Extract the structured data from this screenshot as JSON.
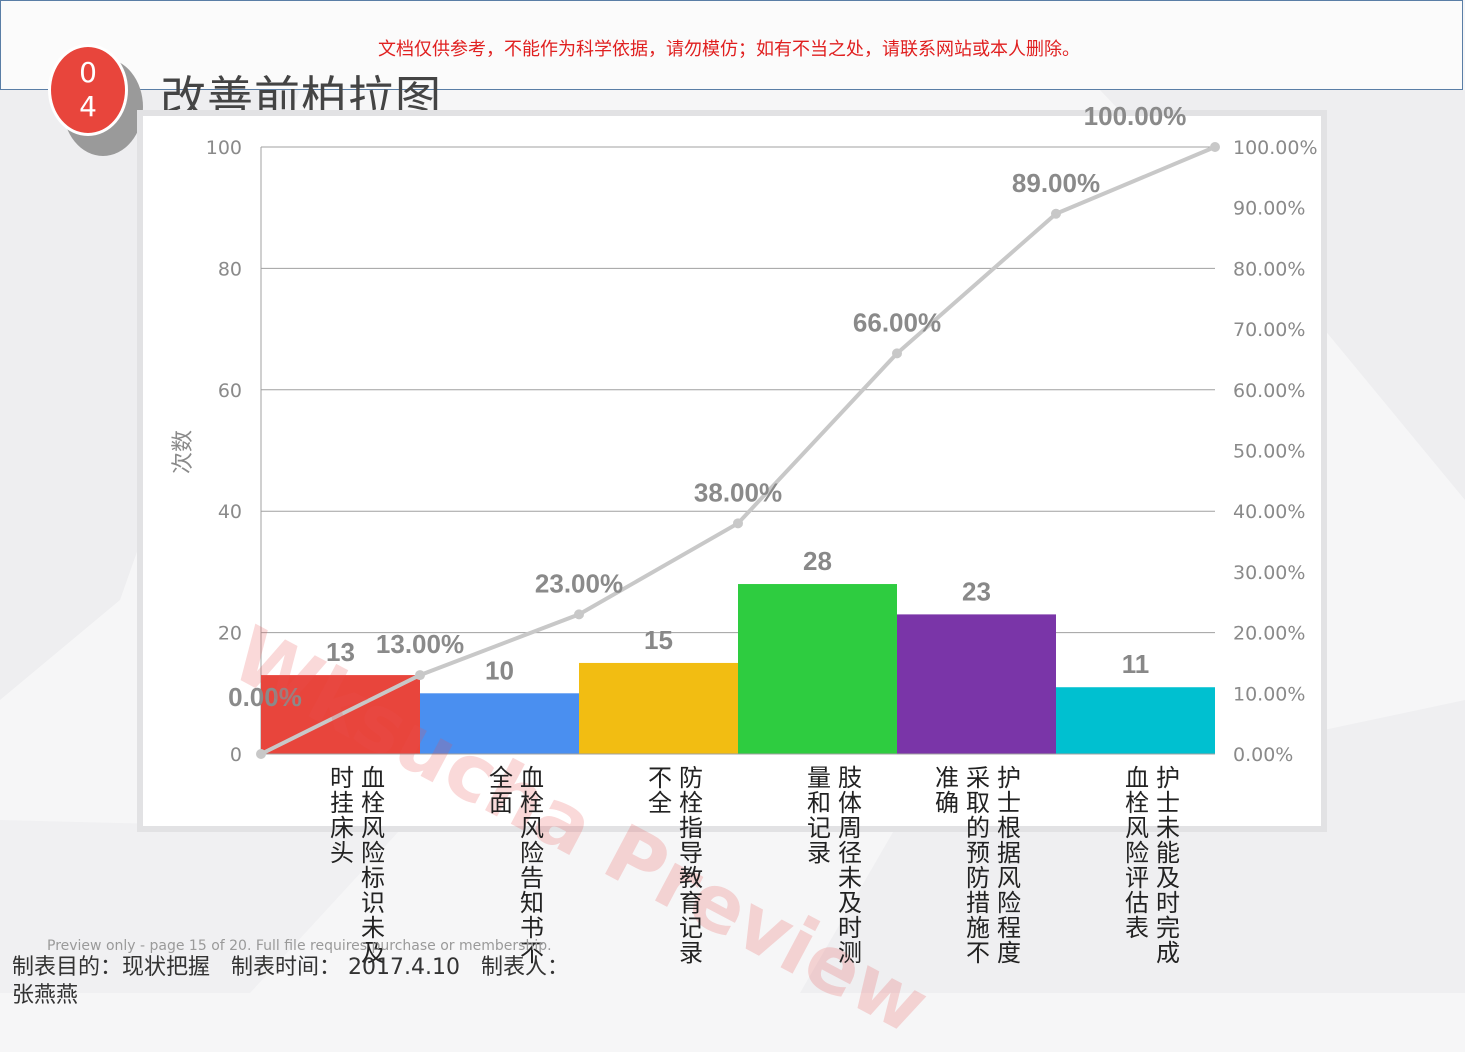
{
  "notice": "文档仅供参考，不能作为科学依据，请勿模仿；如有不当之处，请联系网站或本人删除。",
  "badge": {
    "line1": "0",
    "line2": "4"
  },
  "page_title": "改善前柏拉图",
  "watermark": "Wksucha Preview",
  "preview_note": "Preview only - page 15 of 20. Full file requires purchase or membership.",
  "footer": {
    "purpose": "制表目的：现状把握",
    "date": "制表时间： 2017.4.10",
    "maker": "制表人：",
    "maker_name": "张燕燕"
  },
  "colors": {
    "cumulative_line": "#c8c8c8",
    "grid": "#a0a0a0",
    "axis_text": "#8a8a8a"
  },
  "chart_data": {
    "type": "bar",
    "ylabel": "次数",
    "ylim": [
      0,
      100
    ],
    "y_ticks": [
      "0",
      "20",
      "40",
      "60",
      "80",
      "100"
    ],
    "y2lim": [
      0,
      100
    ],
    "y2_ticks": [
      "0.00%",
      "10.00%",
      "20.00%",
      "30.00%",
      "40.00%",
      "50.00%",
      "60.00%",
      "70.00%",
      "80.00%",
      "90.00%",
      "100.00%"
    ],
    "grid": true,
    "categories": [
      "血栓风险标识未及时挂床头",
      "血栓风险告知书不全面",
      "防栓指导教育记录不全",
      "肢体周径未及时测量和记录",
      "护士根据风险程度采取的预防措施不准确",
      "护士未能及时完成血栓风险评估表"
    ],
    "values": [
      13,
      10,
      15,
      28,
      23,
      11
    ],
    "value_labels": [
      "13",
      "10",
      "15",
      "28",
      "23",
      "11"
    ],
    "bar_colors": [
      "#e8453c",
      "#4a8ff0",
      "#f2bd12",
      "#2ecc40",
      "#7a35a8",
      "#00c0d0"
    ],
    "cumulative": {
      "values": [
        0,
        13,
        23,
        38,
        66,
        89,
        100
      ],
      "labels": [
        "0.00%",
        "13.00%",
        "23.00%",
        "38.00%",
        "66.00%",
        "89.00%",
        "100.00%"
      ]
    }
  }
}
